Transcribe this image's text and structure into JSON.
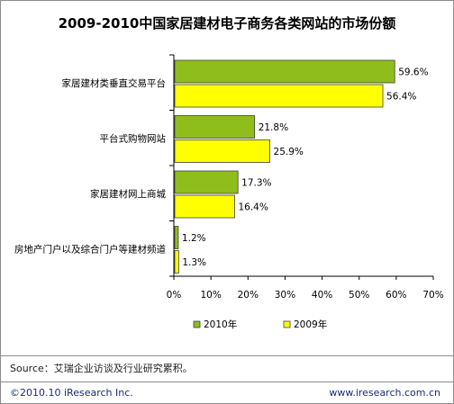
{
  "chart_data": {
    "type": "bar",
    "orientation": "horizontal",
    "title": "2009-2010中国家居建材电子商务各类网站的市场份额",
    "categories": [
      "家居建材类垂直交易平台",
      "平台式购物网站",
      "家居建材网上商城",
      "房地产门户以及综合门户等建材频道"
    ],
    "series": [
      {
        "name": "2010年",
        "color": "#8fbd1c",
        "values": [
          59.6,
          21.8,
          17.3,
          1.2
        ]
      },
      {
        "name": "2009年",
        "color": "#ffff00",
        "values": [
          56.4,
          25.9,
          16.4,
          1.3
        ]
      }
    ],
    "value_labels": [
      [
        "59.6%",
        "21.8%",
        "17.3%",
        "1.2%"
      ],
      [
        "56.4%",
        "25.9%",
        "16.4%",
        "1.3%"
      ]
    ],
    "xlim": [
      0,
      70
    ],
    "x_ticks": [
      "0%",
      "10%",
      "20%",
      "30%",
      "40%",
      "50%",
      "60%",
      "70%"
    ],
    "legend_position": "bottom",
    "grid": false
  },
  "footer": {
    "source": "Source：艾瑞企业访谈及行业研究累积。",
    "copyright": "©2010.10 iResearch Inc.",
    "website": "www.iresearch.com.cn"
  }
}
